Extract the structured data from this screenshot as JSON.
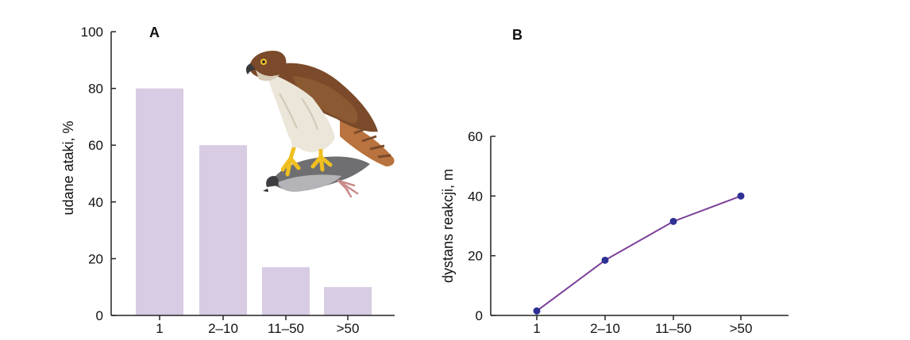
{
  "chart_data": [
    {
      "type": "bar",
      "panel_label": "A",
      "categories": [
        "1",
        "2–10",
        "11–50",
        ">50"
      ],
      "values": [
        80,
        60,
        17,
        10
      ],
      "title": "",
      "xlabel": "",
      "ylabel": "udane ataki, %",
      "ylim": [
        0,
        100
      ],
      "yticks": [
        "0",
        "20",
        "40",
        "60",
        "80",
        "100"
      ],
      "bar_color": "#d8cbe4",
      "grid": false,
      "illustration": "hawk-with-pigeon"
    },
    {
      "type": "line",
      "panel_label": "B",
      "categories": [
        "1",
        "2–10",
        "11–50",
        ">50"
      ],
      "values": [
        1.5,
        18.5,
        31.5,
        40
      ],
      "title": "",
      "xlabel": "",
      "ylabel": "dystans reakcji, m",
      "ylim": [
        0,
        60
      ],
      "yticks": [
        "0",
        "20",
        "40",
        "60"
      ],
      "line_color": "#7b3f98",
      "marker_color": "#2e3192",
      "grid": false
    }
  ]
}
